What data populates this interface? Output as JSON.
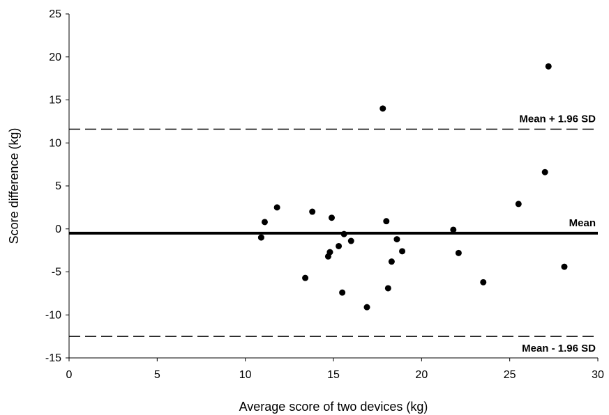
{
  "chart_data": {
    "type": "scatter",
    "title": "",
    "xlabel": "Average score of two devices (kg)",
    "ylabel": "Score difference (kg)",
    "xlim": [
      0,
      30
    ],
    "ylim": [
      -15,
      25
    ],
    "x_ticks": [
      "0",
      "5",
      "10",
      "15",
      "20",
      "25",
      "30"
    ],
    "y_ticks": [
      "25",
      "20",
      "15",
      "10",
      "5",
      "0",
      "-5",
      "-10",
      "-15"
    ],
    "grid": false,
    "legend": "none",
    "colors": {
      "points": "#000000",
      "lines": "#000000"
    },
    "reference_lines": [
      {
        "label": "Mean + 1.96 SD",
        "y": 11.6,
        "style": "dashed"
      },
      {
        "label": "Mean",
        "y": -0.5,
        "style": "solid"
      },
      {
        "label": "Mean - 1.96 SD",
        "y": -12.5,
        "style": "dashed"
      }
    ],
    "points": [
      {
        "x": 10.9,
        "y": -1.0
      },
      {
        "x": 11.1,
        "y": 0.8
      },
      {
        "x": 11.8,
        "y": 2.5
      },
      {
        "x": 13.4,
        "y": -5.7
      },
      {
        "x": 13.8,
        "y": 2.0
      },
      {
        "x": 14.7,
        "y": -3.2
      },
      {
        "x": 14.8,
        "y": -2.7
      },
      {
        "x": 14.9,
        "y": 1.3
      },
      {
        "x": 15.3,
        "y": -2.0
      },
      {
        "x": 15.5,
        "y": -7.4
      },
      {
        "x": 15.6,
        "y": -0.6
      },
      {
        "x": 16.0,
        "y": -1.4
      },
      {
        "x": 16.9,
        "y": -9.1
      },
      {
        "x": 17.8,
        "y": 14.0
      },
      {
        "x": 18.0,
        "y": 0.9
      },
      {
        "x": 18.1,
        "y": -6.9
      },
      {
        "x": 18.3,
        "y": -3.8
      },
      {
        "x": 18.6,
        "y": -1.2
      },
      {
        "x": 18.9,
        "y": -2.6
      },
      {
        "x": 21.8,
        "y": -0.1
      },
      {
        "x": 22.1,
        "y": -2.8
      },
      {
        "x": 23.5,
        "y": -6.2
      },
      {
        "x": 25.5,
        "y": 2.9
      },
      {
        "x": 27.0,
        "y": 6.6
      },
      {
        "x": 27.2,
        "y": 18.9
      },
      {
        "x": 28.1,
        "y": -4.4
      }
    ]
  }
}
